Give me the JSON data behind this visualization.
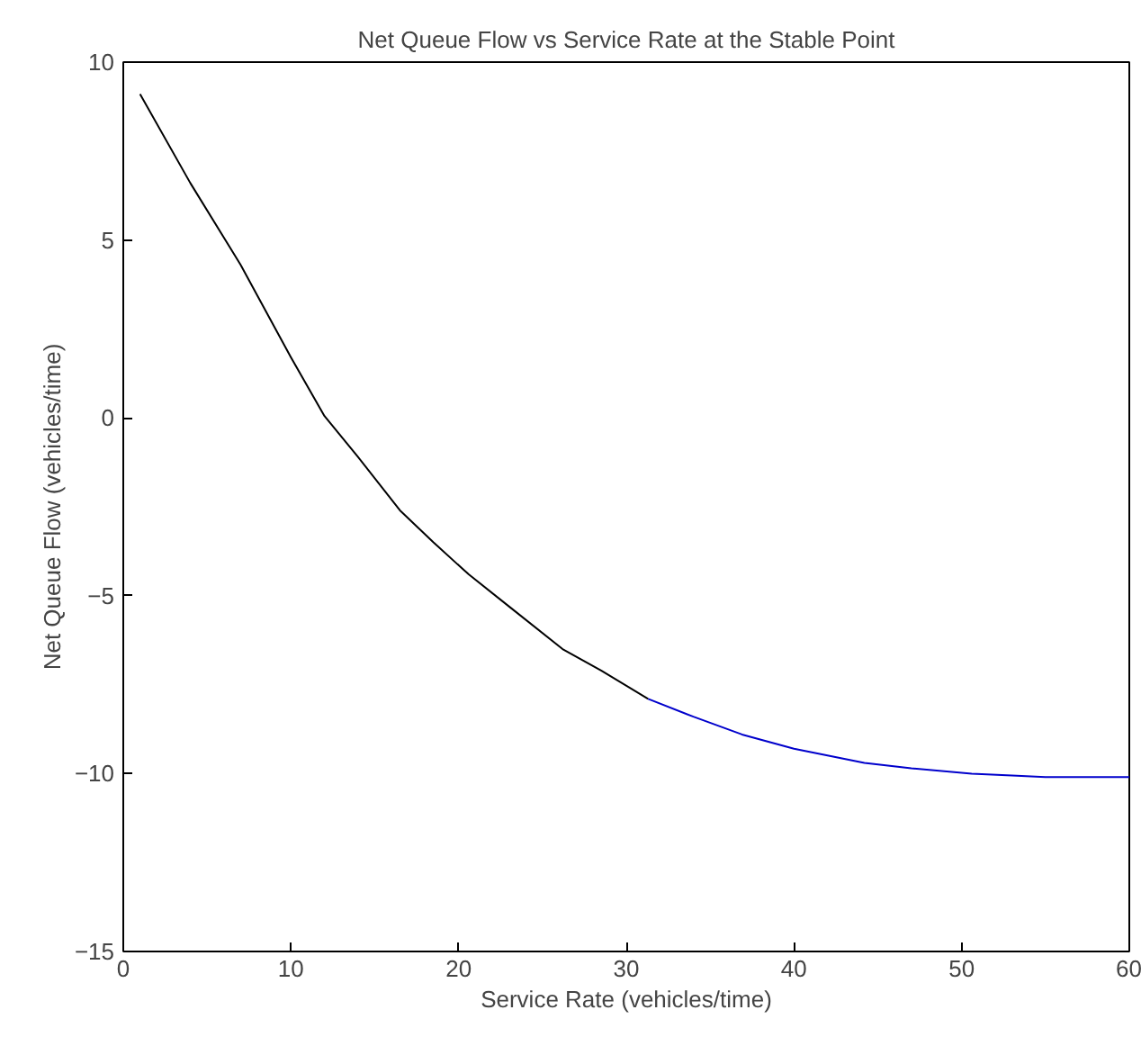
{
  "chart_data": {
    "type": "line",
    "title": "Net Queue Flow vs Service Rate at the Stable Point",
    "xlabel": "Service Rate (vehicles/time)",
    "ylabel": "Net Queue Flow (vehicles/time)",
    "series": [
      {
        "color": "#000000",
        "x": [
          1,
          4,
          7,
          10,
          12,
          14,
          16.5,
          18.5,
          20.6,
          23,
          26.2,
          28.5,
          31.3
        ],
        "values": [
          9.1,
          6.6,
          4.3,
          1.7,
          0.05,
          -1.1,
          -2.6,
          -3.5,
          -4.4,
          -5.3,
          -6.5,
          -7.1,
          -7.9
        ]
      },
      {
        "color": "#0000cc",
        "x": [
          31.3,
          34,
          36.9,
          40,
          44.2,
          47,
          50.6,
          53,
          55,
          57.5,
          60
        ],
        "values": [
          -7.9,
          -8.4,
          -8.9,
          -9.3,
          -9.7,
          -9.85,
          -10.0,
          -10.05,
          -10.1,
          -10.1,
          -10.1
        ]
      }
    ],
    "xlim": [
      0,
      60
    ],
    "ylim": [
      -15,
      10
    ],
    "xticks": [
      0,
      10,
      20,
      30,
      40,
      50,
      60
    ],
    "yticks": [
      -15,
      -10,
      -5,
      0,
      5,
      10
    ],
    "grid": false,
    "marker": "none",
    "line_style": "solid"
  }
}
